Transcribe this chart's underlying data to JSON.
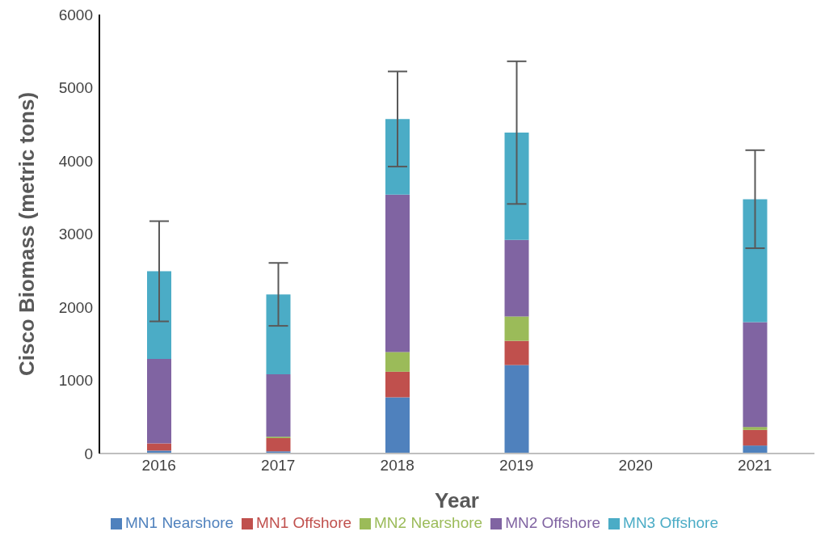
{
  "chart_data": {
    "type": "bar",
    "stacked": true,
    "xlabel": "Year",
    "ylabel": "Cisco Biomass (metric tons)",
    "categories": [
      "2016",
      "2017",
      "2018",
      "2019",
      "2020",
      "2021"
    ],
    "series": [
      {
        "name": "MN1 Nearshore",
        "color": "#4f81bd",
        "values": [
          40,
          30,
          768,
          1209,
          null,
          109
        ]
      },
      {
        "name": "MN1 Offshore",
        "color": "#c0504d",
        "values": [
          98,
          180,
          350,
          331,
          null,
          213
        ]
      },
      {
        "name": "MN2 Nearshore",
        "color": "#9bbb59",
        "values": [
          0,
          20,
          270,
          334,
          null,
          41
        ]
      },
      {
        "name": "MN2 Offshore",
        "color": "#8064a2",
        "values": [
          1155,
          852,
          2150,
          1046,
          null,
          1432
        ]
      },
      {
        "name": "MN3 Offshore",
        "color": "#4bacc6",
        "values": [
          1198,
          1093,
          1034,
          1466,
          null,
          1681
        ],
        "errors": [
          685,
          430,
          650,
          975,
          null,
          670
        ]
      }
    ],
    "ylim": [
      0,
      6000
    ],
    "yticks": [
      0,
      1000,
      2000,
      3000,
      4000,
      5000,
      6000
    ],
    "grid": false,
    "legend": "bottom"
  }
}
